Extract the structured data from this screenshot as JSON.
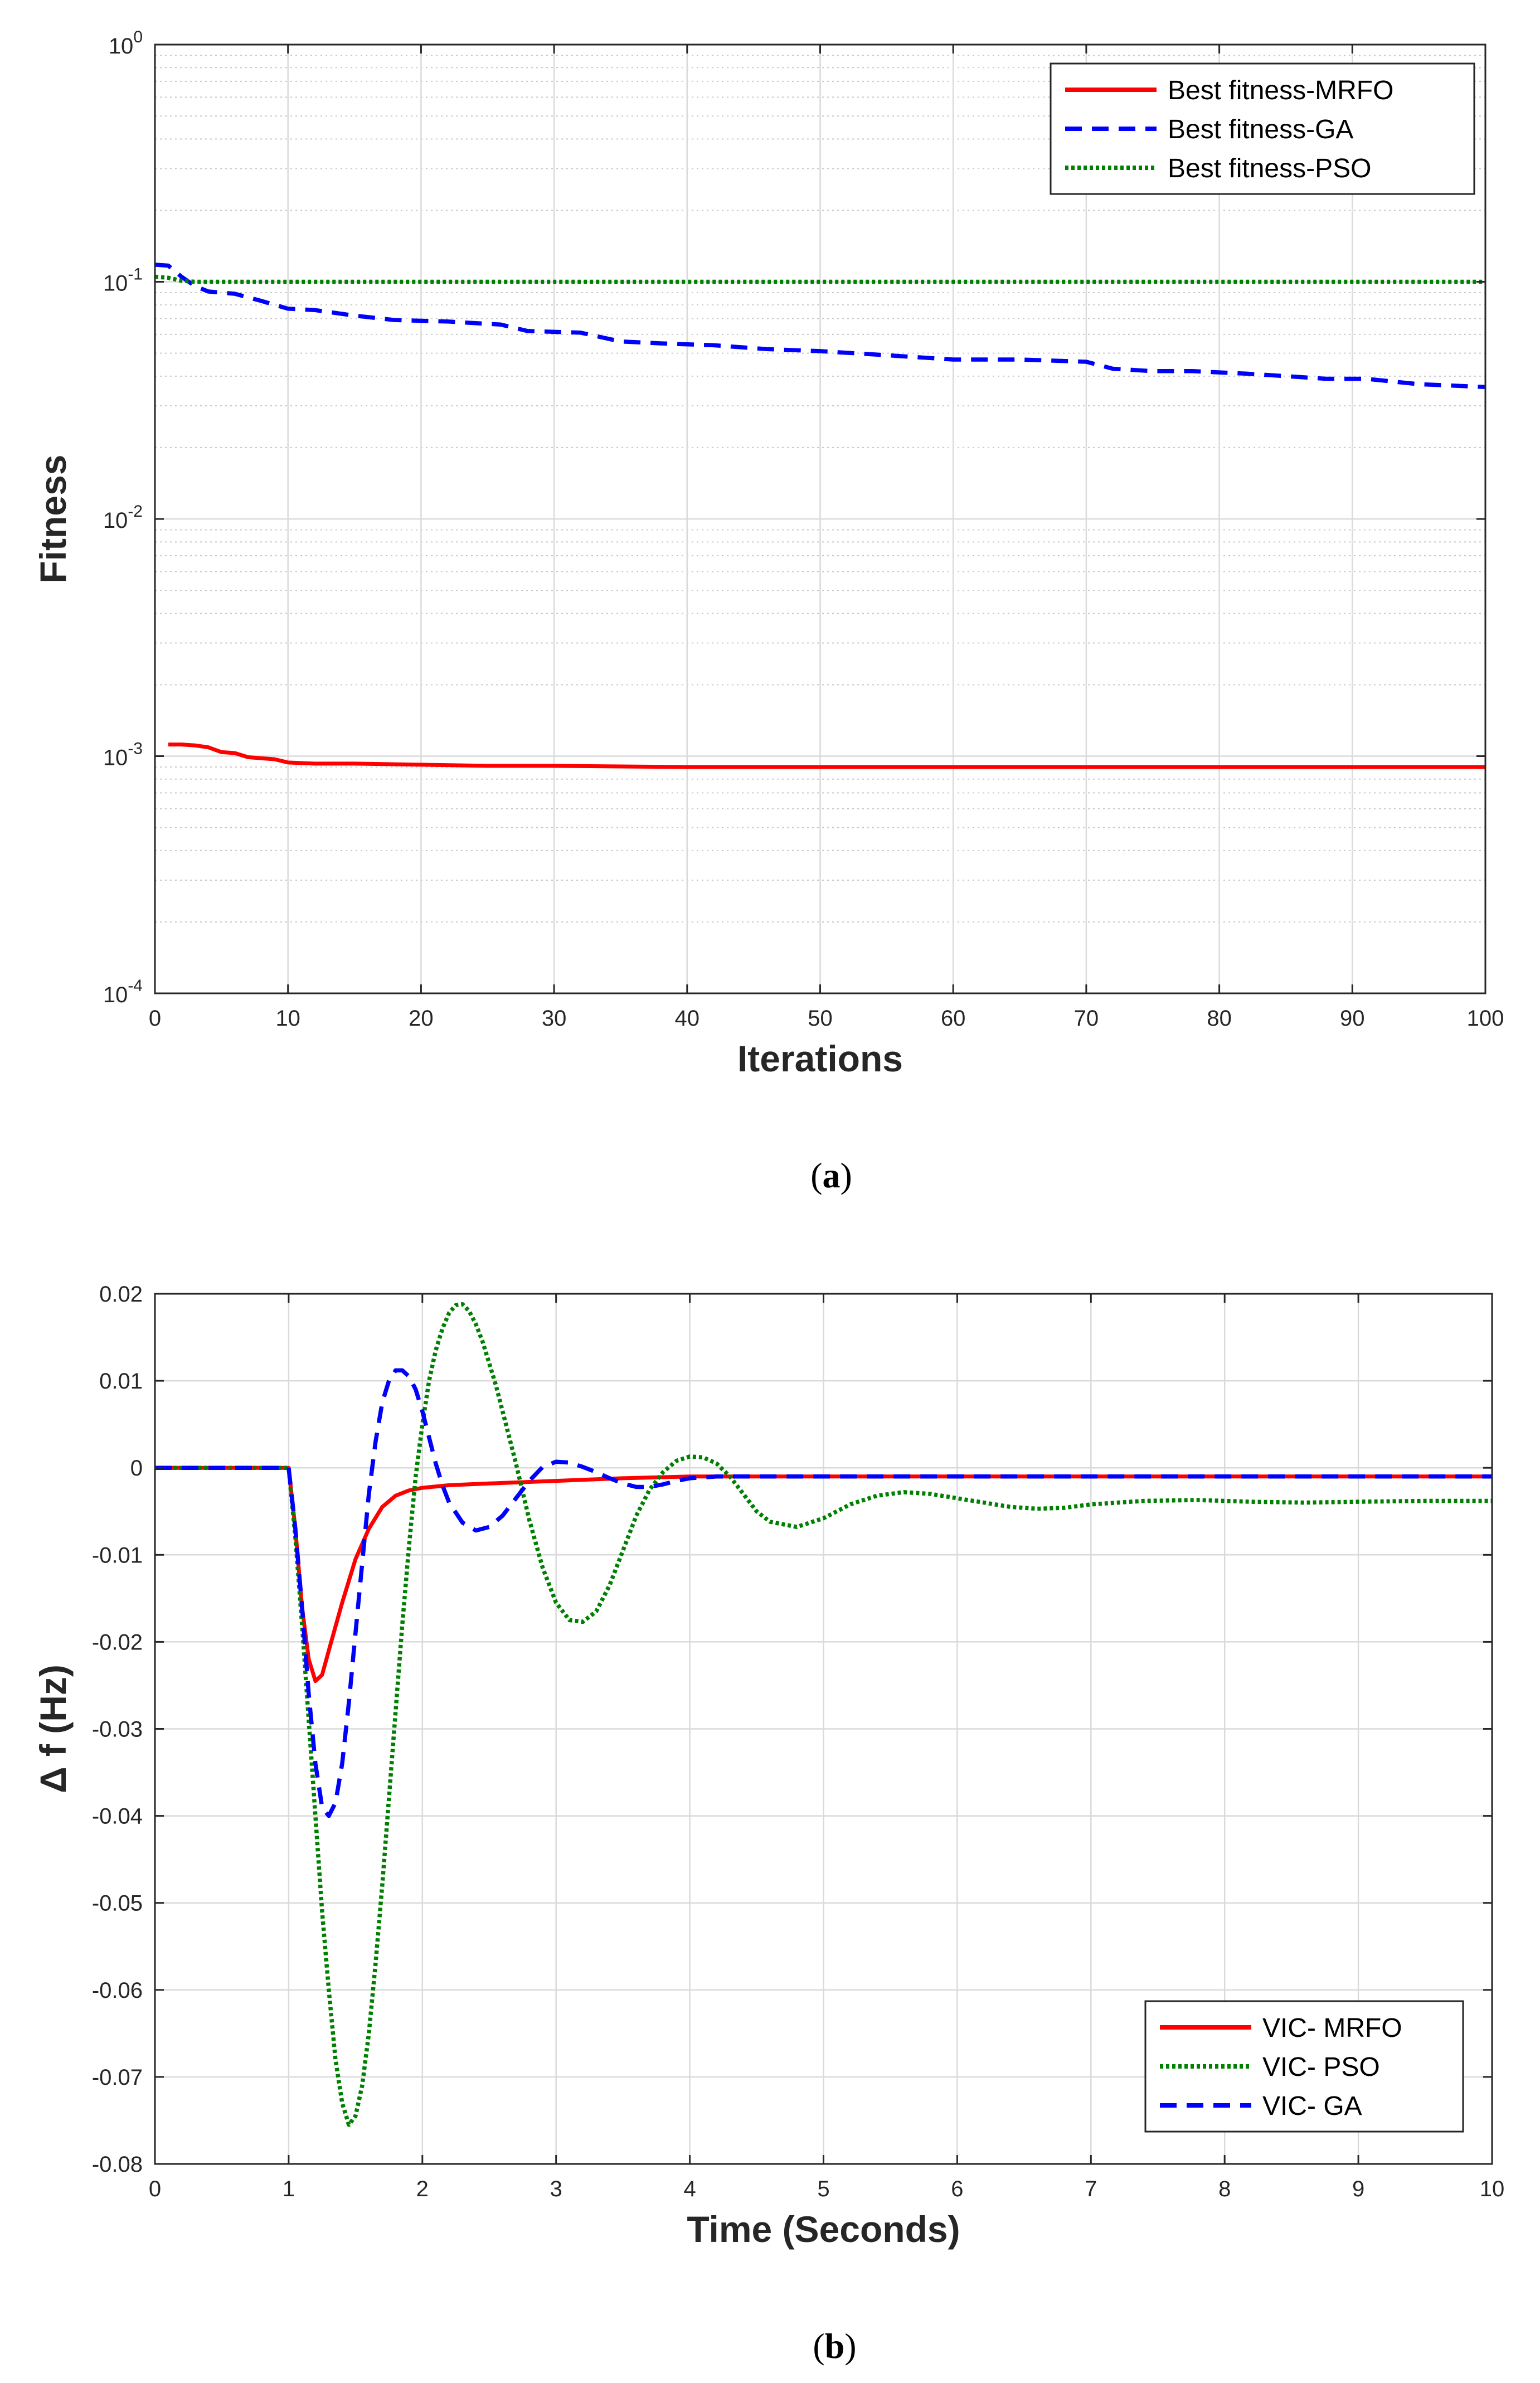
{
  "chart_data": [
    {
      "type": "line",
      "panel": "a",
      "caption_open": "(",
      "caption_letter": "a",
      "caption_close": ")",
      "xlabel": "Iterations",
      "ylabel": "Fitness",
      "yscale": "log",
      "xlim": [
        0,
        100
      ],
      "ylim": [
        0.0001,
        1
      ],
      "grid": true,
      "legend_position": "top-right",
      "x_ticks": [
        0,
        10,
        20,
        30,
        40,
        50,
        60,
        70,
        80,
        90,
        100
      ],
      "x_tick_labels": [
        "0",
        "10",
        "20",
        "30",
        "40",
        "50",
        "60",
        "70",
        "80",
        "90",
        "100"
      ],
      "y_ticks": [
        {
          "value": 1,
          "base": "10",
          "exp": "0"
        },
        {
          "value": 0.1,
          "base": "10",
          "exp": "-1"
        },
        {
          "value": 0.01,
          "base": "10",
          "exp": "-2"
        },
        {
          "value": 0.001,
          "base": "10",
          "exp": "-3"
        },
        {
          "value": 0.0001,
          "base": "10",
          "exp": "-4"
        }
      ],
      "series": [
        {
          "name": "Best fitness-MRFO",
          "color": "#ff0000",
          "style": "solid",
          "x": [
            1,
            2,
            3,
            4,
            5,
            6,
            7,
            8,
            9,
            10,
            12,
            15,
            20,
            25,
            30,
            40,
            50,
            60,
            70,
            80,
            90,
            100
          ],
          "y": [
            0.00112,
            0.00112,
            0.00111,
            0.00109,
            0.00104,
            0.00103,
            0.00099,
            0.00098,
            0.00097,
            0.00094,
            0.00093,
            0.00093,
            0.00092,
            0.00091,
            0.00091,
            0.0009,
            0.0009,
            0.0009,
            0.0009,
            0.0009,
            0.0009,
            0.0009
          ]
        },
        {
          "name": "Best fitness-GA",
          "color": "#0000ff",
          "style": "dashed",
          "x": [
            0,
            1,
            2,
            3,
            4,
            5,
            6,
            8,
            10,
            12,
            15,
            18,
            22,
            26,
            28,
            32,
            35,
            38,
            42,
            46,
            50,
            55,
            60,
            65,
            70,
            72,
            75,
            78,
            82,
            85,
            88,
            91,
            95,
            100
          ],
          "y": [
            0.118,
            0.117,
            0.105,
            0.096,
            0.091,
            0.09,
            0.089,
            0.083,
            0.077,
            0.076,
            0.072,
            0.069,
            0.068,
            0.066,
            0.062,
            0.061,
            0.056,
            0.055,
            0.054,
            0.052,
            0.051,
            0.049,
            0.047,
            0.047,
            0.046,
            0.043,
            0.042,
            0.042,
            0.041,
            0.04,
            0.039,
            0.039,
            0.037,
            0.036
          ]
        },
        {
          "name": "Best fitness-PSO",
          "color": "#008000",
          "style": "dotted",
          "x": [
            0,
            1,
            2,
            3,
            100
          ],
          "y": [
            0.105,
            0.104,
            0.101,
            0.1,
            0.1
          ]
        }
      ]
    },
    {
      "type": "line",
      "panel": "b",
      "caption_open": "(",
      "caption_letter": "b",
      "caption_close": ")",
      "xlabel": "Time (Seconds)",
      "ylabel": "Δ f (Hz)",
      "xlim": [
        0,
        10
      ],
      "ylim": [
        -0.08,
        0.02
      ],
      "grid": true,
      "legend_position": "bottom-right",
      "x_ticks": [
        0,
        1,
        2,
        3,
        4,
        5,
        6,
        7,
        8,
        9,
        10
      ],
      "x_tick_labels": [
        "0",
        "1",
        "2",
        "3",
        "4",
        "5",
        "6",
        "7",
        "8",
        "9",
        "10"
      ],
      "y_ticks": [
        0.02,
        0.01,
        0,
        -0.01,
        -0.02,
        -0.03,
        -0.04,
        -0.05,
        -0.06,
        -0.07,
        -0.08
      ],
      "y_tick_labels": [
        "0.02",
        "0.01",
        "0",
        "-0.01",
        "-0.02",
        "-0.03",
        "-0.04",
        "-0.05",
        "-0.06",
        "-0.07",
        "-0.08"
      ],
      "series": [
        {
          "name": "VIC- MRFO",
          "color": "#ff0000",
          "style": "solid",
          "x": [
            0,
            1.0,
            1.05,
            1.1,
            1.15,
            1.2,
            1.25,
            1.3,
            1.4,
            1.5,
            1.6,
            1.7,
            1.8,
            1.9,
            2.0,
            2.2,
            2.5,
            3.0,
            3.5,
            4.0,
            5.0,
            6.0,
            7.0,
            8.0,
            9.0,
            10.0
          ],
          "y": [
            0,
            0,
            -0.007,
            -0.016,
            -0.022,
            -0.0245,
            -0.0238,
            -0.021,
            -0.0155,
            -0.0105,
            -0.007,
            -0.0045,
            -0.0032,
            -0.0026,
            -0.0023,
            -0.002,
            -0.0018,
            -0.0015,
            -0.0012,
            -0.001,
            -0.001,
            -0.001,
            -0.001,
            -0.001,
            -0.001,
            -0.001
          ]
        },
        {
          "name": "VIC- PSO",
          "color": "#008000",
          "style": "dotted",
          "x": [
            0,
            1.0,
            1.05,
            1.1,
            1.15,
            1.2,
            1.25,
            1.3,
            1.35,
            1.4,
            1.45,
            1.5,
            1.55,
            1.6,
            1.65,
            1.7,
            1.75,
            1.8,
            1.85,
            1.9,
            1.95,
            2.0,
            2.05,
            2.1,
            2.15,
            2.2,
            2.25,
            2.3,
            2.35,
            2.4,
            2.45,
            2.5,
            2.55,
            2.6,
            2.7,
            2.8,
            2.9,
            3.0,
            3.1,
            3.2,
            3.3,
            3.4,
            3.5,
            3.6,
            3.7,
            3.8,
            3.9,
            4.0,
            4.1,
            4.2,
            4.3,
            4.4,
            4.5,
            4.6,
            4.8,
            5.0,
            5.2,
            5.4,
            5.6,
            5.8,
            6.0,
            6.2,
            6.4,
            6.6,
            6.8,
            7.0,
            7.4,
            7.8,
            8.2,
            8.6,
            9.0,
            9.5,
            10.0
          ],
          "y": [
            0,
            0,
            -0.008,
            -0.018,
            -0.029,
            -0.04,
            -0.051,
            -0.06,
            -0.068,
            -0.073,
            -0.0755,
            -0.0745,
            -0.071,
            -0.065,
            -0.057,
            -0.048,
            -0.038,
            -0.028,
            -0.018,
            -0.009,
            -0.001,
            0.005,
            0.01,
            0.0135,
            0.016,
            0.0178,
            0.0187,
            0.0188,
            0.018,
            0.0165,
            0.0145,
            0.012,
            0.0095,
            0.0065,
            0.0005,
            -0.006,
            -0.0115,
            -0.0155,
            -0.0175,
            -0.0177,
            -0.0165,
            -0.0135,
            -0.0095,
            -0.0055,
            -0.0025,
            -0.0005,
            0.0008,
            0.0013,
            0.0012,
            0.0005,
            -0.001,
            -0.003,
            -0.005,
            -0.0062,
            -0.0068,
            -0.0058,
            -0.0042,
            -0.0032,
            -0.0028,
            -0.003,
            -0.0035,
            -0.004,
            -0.0045,
            -0.0047,
            -0.0046,
            -0.0042,
            -0.0038,
            -0.0037,
            -0.0039,
            -0.004,
            -0.0039,
            -0.0038,
            -0.0038
          ]
        },
        {
          "name": "VIC- GA",
          "color": "#0000ff",
          "style": "dashed",
          "x": [
            0,
            1.0,
            1.05,
            1.1,
            1.15,
            1.2,
            1.25,
            1.3,
            1.35,
            1.4,
            1.45,
            1.5,
            1.55,
            1.6,
            1.65,
            1.7,
            1.75,
            1.8,
            1.85,
            1.9,
            1.95,
            2.0,
            2.05,
            2.1,
            2.15,
            2.2,
            2.3,
            2.4,
            2.5,
            2.6,
            2.7,
            2.8,
            2.9,
            3.0,
            3.1,
            3.2,
            3.3,
            3.4,
            3.5,
            3.6,
            3.7,
            3.8,
            3.9,
            4.0,
            4.2,
            4.5,
            5.0,
            6.0,
            7.0,
            8.0,
            9.0,
            10.0
          ],
          "y": [
            0,
            0,
            -0.007,
            -0.016,
            -0.026,
            -0.034,
            -0.039,
            -0.04,
            -0.0385,
            -0.034,
            -0.027,
            -0.019,
            -0.011,
            -0.003,
            0.003,
            0.0075,
            0.01,
            0.0112,
            0.0112,
            0.0105,
            0.009,
            0.0065,
            0.0035,
            0.0005,
            -0.002,
            -0.004,
            -0.0063,
            -0.0072,
            -0.0068,
            -0.0055,
            -0.0035,
            -0.0015,
            0.0001,
            0.0007,
            0.0006,
            0.0001,
            -0.0005,
            -0.0012,
            -0.0018,
            -0.0022,
            -0.0022,
            -0.0019,
            -0.0015,
            -0.0012,
            -0.001,
            -0.001,
            -0.001,
            -0.001,
            -0.001,
            -0.001,
            -0.001,
            -0.001
          ]
        }
      ]
    }
  ]
}
